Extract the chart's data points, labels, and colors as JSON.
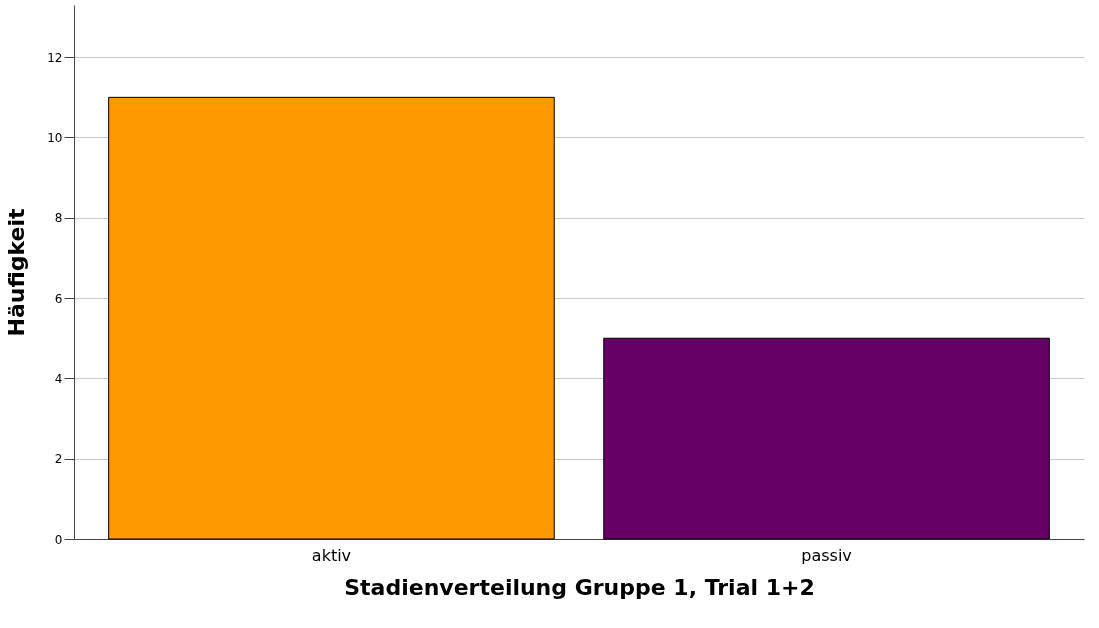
{
  "chart_data": {
    "type": "bar",
    "categories": [
      "aktiv",
      "passiv"
    ],
    "values": [
      11,
      5
    ],
    "colors": [
      "#ff9900",
      "#660066"
    ],
    "xlabel": "Stadienverteilung Gruppe 1, Trial 1+2",
    "ylabel": "Häufigkeit",
    "ylim": [
      0,
      13.3
    ],
    "yticks": [
      0,
      2,
      4,
      6,
      8,
      10,
      12
    ],
    "grid": "y"
  }
}
